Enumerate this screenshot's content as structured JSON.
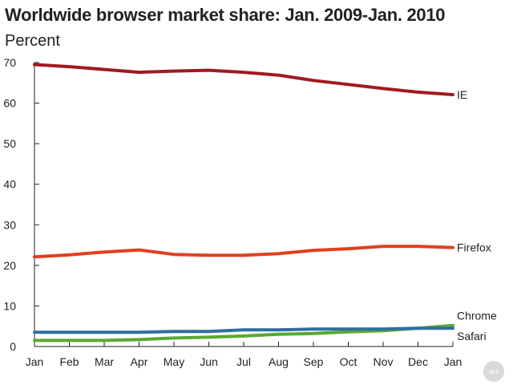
{
  "chart_data": {
    "type": "line",
    "title": "Worldwide browser market share: Jan. 2009-Jan. 2010",
    "ylabel": "Percent",
    "xlabel": "",
    "categories": [
      "Jan",
      "Feb",
      "Mar",
      "Apr",
      "May",
      "Jun",
      "Jul",
      "Aug",
      "Sep",
      "Oct",
      "Nov",
      "Dec",
      "Jan"
    ],
    "ylim": [
      0,
      70
    ],
    "yticks": [
      0,
      10,
      20,
      30,
      40,
      50,
      60,
      70
    ],
    "grid": false,
    "series": [
      {
        "name": "IE",
        "color": "#a11a1f",
        "values": [
          69.5,
          69.0,
          68.3,
          67.6,
          67.9,
          68.1,
          67.6,
          66.9,
          65.6,
          64.6,
          63.6,
          62.7,
          62.1
        ]
      },
      {
        "name": "Firefox",
        "color": "#e0401e",
        "values": [
          22.1,
          22.6,
          23.3,
          23.8,
          22.7,
          22.5,
          22.5,
          22.9,
          23.7,
          24.1,
          24.7,
          24.7,
          24.4
        ]
      },
      {
        "name": "Chrome",
        "color": "#5aa832",
        "values": [
          1.5,
          1.5,
          1.5,
          1.7,
          2.1,
          2.3,
          2.6,
          3.0,
          3.2,
          3.6,
          3.9,
          4.5,
          5.2
        ]
      },
      {
        "name": "Safari",
        "color": "#2e6fa3",
        "values": [
          3.5,
          3.5,
          3.5,
          3.5,
          3.7,
          3.7,
          4.1,
          4.1,
          4.3,
          4.3,
          4.3,
          4.5,
          4.5
        ]
      }
    ]
  },
  "logo_text": "ars"
}
